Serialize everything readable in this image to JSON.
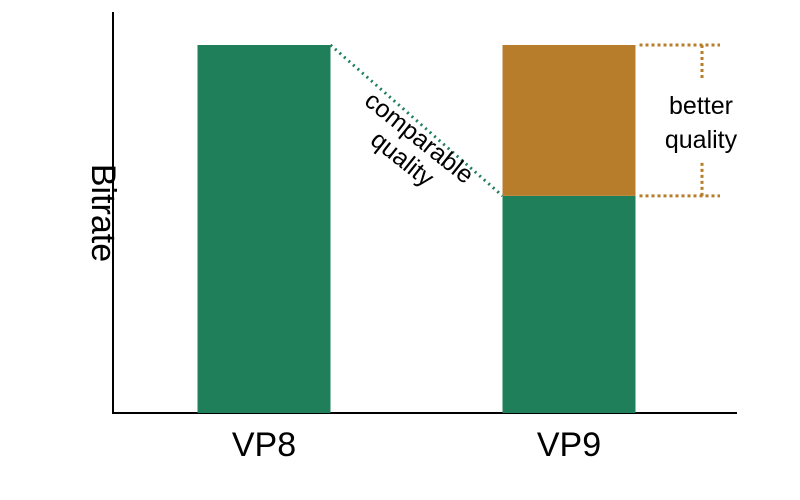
{
  "chart_data": {
    "type": "bar",
    "title": "",
    "xlabel": "",
    "ylabel": "Bitrate",
    "categories": [
      "VP8",
      "VP9"
    ],
    "series": [
      {
        "values": [
          1.0,
          0.59
        ],
        "color": "#1e7f5a"
      },
      {
        "values": [
          0,
          0.41
        ],
        "color": "#b87d2a"
      }
    ],
    "ylim": [
      0,
      1
    ],
    "grid": false,
    "legend": "none",
    "annotations": {
      "comparable": {
        "lines": [
          "comparable",
          "quality"
        ],
        "color": "#1e7f5a"
      },
      "better": {
        "lines": [
          "better",
          "quality"
        ],
        "color": "#b87d2a"
      }
    }
  }
}
